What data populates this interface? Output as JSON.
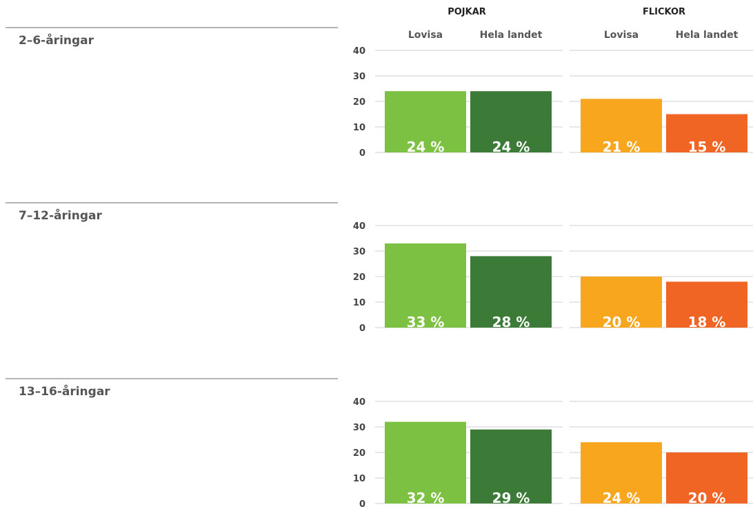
{
  "chart_data": {
    "type": "bar",
    "headers": {
      "boys": "POJKAR",
      "girls": "FLICKOR"
    },
    "columns": [
      "Lovisa",
      "Hela landet",
      "Lovisa",
      "Hela landet"
    ],
    "yticks": [
      "0",
      "10",
      "20",
      "30",
      "40"
    ],
    "ylim": [
      0,
      40
    ],
    "colors": {
      "boys_lovisa": "#7dc142",
      "boys_country": "#3c7a38",
      "girls_lovisa": "#f8a61e",
      "girls_country": "#f06424"
    },
    "groups": [
      {
        "label": "2–6-åringar",
        "values": [
          24,
          24,
          21,
          15
        ],
        "value_labels": [
          "24 %",
          "24 %",
          "21 %",
          "15 %"
        ]
      },
      {
        "label": "7–12-åringar",
        "values": [
          33,
          28,
          20,
          18
        ],
        "value_labels": [
          "33 %",
          "28 %",
          "20 %",
          "18 %"
        ]
      },
      {
        "label": "13–16-åringar",
        "values": [
          32,
          29,
          24,
          20
        ],
        "value_labels": [
          "32 %",
          "29 %",
          "24 %",
          "20 %"
        ]
      }
    ]
  }
}
